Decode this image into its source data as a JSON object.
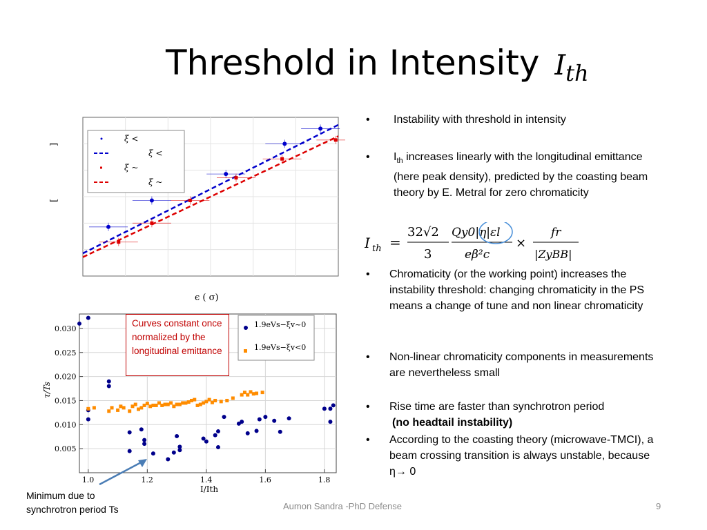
{
  "slide": {
    "title_text": "Threshold in Intensity",
    "title_math_main": "I",
    "title_math_sub": "th",
    "footer": "Aumon Sandra -PhD Defense",
    "page_number": "9"
  },
  "bullets": [
    {
      "text": "Instability with threshold in intensity"
    },
    {
      "text_main": "I",
      "text_sub": "th",
      "text_rest": " increases linearly with the longitudinal emittance (here peak density), predicted by the coasting beam theory by E. Metral for zero chromaticity"
    },
    {
      "text": "Chromaticity (or the working point) increases the instability threshold: changing chromaticity in the PS means a change of tune and non linear chromaticity"
    },
    {
      "text": "Non-linear chromaticity components in measurements are nevertheless small"
    },
    {
      "text": "Rise time are faster than synchrotron period",
      "text_bold": "(no headtail instability)"
    },
    {
      "text": "According to the coasting theory (microwave-TMCI), a beam crossing transition is always unstable, because η",
      "text_arrow": "→ 0"
    }
  ],
  "formula": {
    "lhs": "I",
    "lhs_sub": "th",
    "num1": "32√2",
    "den1": "3",
    "num2": "Qy0|η|εl",
    "den2": "eβ²c",
    "times": "×",
    "num3": "fr",
    "den3": "|ZyBB|"
  },
  "annotations": {
    "callout": "Curves constant once normalized by the longitudinal emittance",
    "minimum_note": "Minimum due to synchrotron period Ts"
  },
  "chart_data": [
    {
      "type": "scatter",
      "title": "",
      "xlabel": "ϵ (   σ)",
      "ylabel_top": "]",
      "ylabel_bottom": "[",
      "legend": [
        "ξ <",
        "ξ <",
        "ξ ~",
        "ξ ~"
      ],
      "legend_placement": "top-left",
      "grid": true,
      "series": [
        {
          "color": "#0000cc",
          "points": [
            [
              0.1,
              0.73
            ],
            [
              0.27,
              0.8
            ],
            [
              0.56,
              0.87
            ],
            [
              0.79,
              0.95
            ],
            [
              0.93,
              0.99
            ]
          ],
          "fit_line": [
            [
              0.0,
              0.66
            ],
            [
              1.0,
              1.0
            ]
          ]
        },
        {
          "color": "#dd0000",
          "points": [
            [
              0.14,
              0.69
            ],
            [
              0.27,
              0.74
            ],
            [
              0.42,
              0.8
            ],
            [
              0.6,
              0.86
            ],
            [
              0.78,
              0.91
            ],
            [
              0.99,
              0.96
            ]
          ],
          "fit_line": [
            [
              0.0,
              0.65
            ],
            [
              1.0,
              0.97
            ]
          ]
        }
      ]
    },
    {
      "type": "scatter",
      "title": "",
      "xlabel": "I/Ith",
      "ylabel": "τ/Ts",
      "xlim": [
        0.97,
        1.84
      ],
      "ylim": [
        0.0,
        0.033
      ],
      "xticks": [
        "1.0",
        "1.2",
        "1.4",
        "1.6",
        "1.8"
      ],
      "yticks": [
        "0.005",
        "0.010",
        "0.015",
        "0.020",
        "0.025",
        "0.030"
      ],
      "legend": [
        "1.9eVs−ξv~0",
        "1.9eVs−ξv<0"
      ],
      "legend_placement": "top-right",
      "grid": true,
      "series": [
        {
          "name": "1.9eVs−ξv~0",
          "color": "#00008b",
          "marker": "circle",
          "points": [
            [
              0.97,
              0.031
            ],
            [
              1.0,
              0.0322
            ],
            [
              1.0,
              0.0111
            ],
            [
              1.0,
              0.013
            ],
            [
              1.07,
              0.018
            ],
            [
              1.07,
              0.019
            ],
            [
              1.14,
              0.0045
            ],
            [
              1.14,
              0.0084
            ],
            [
              1.18,
              0.009
            ],
            [
              1.19,
              0.006
            ],
            [
              1.19,
              0.0068
            ],
            [
              1.22,
              0.004
            ],
            [
              1.27,
              0.0028
            ],
            [
              1.29,
              0.0042
            ],
            [
              1.3,
              0.0076
            ],
            [
              1.31,
              0.0047
            ],
            [
              1.31,
              0.0054
            ],
            [
              1.39,
              0.0071
            ],
            [
              1.4,
              0.0065
            ],
            [
              1.43,
              0.0078
            ],
            [
              1.44,
              0.0086
            ],
            [
              1.44,
              0.0053
            ],
            [
              1.46,
              0.0116
            ],
            [
              1.51,
              0.0102
            ],
            [
              1.52,
              0.0106
            ],
            [
              1.54,
              0.0082
            ],
            [
              1.57,
              0.0087
            ],
            [
              1.58,
              0.0111
            ],
            [
              1.6,
              0.0116
            ],
            [
              1.63,
              0.0108
            ],
            [
              1.65,
              0.0085
            ],
            [
              1.68,
              0.0113
            ],
            [
              1.8,
              0.0133
            ],
            [
              1.82,
              0.0106
            ],
            [
              1.82,
              0.0133
            ],
            [
              1.83,
              0.014
            ]
          ]
        },
        {
          "name": "1.9eVs−ξv<0",
          "color": "#ff8c00",
          "marker": "square",
          "points": [
            [
              1.0,
              0.0133
            ],
            [
              1.02,
              0.0135
            ],
            [
              1.07,
              0.0128
            ],
            [
              1.08,
              0.0135
            ],
            [
              1.1,
              0.013
            ],
            [
              1.11,
              0.0138
            ],
            [
              1.12,
              0.0135
            ],
            [
              1.14,
              0.0128
            ],
            [
              1.15,
              0.0138
            ],
            [
              1.16,
              0.0142
            ],
            [
              1.17,
              0.0132
            ],
            [
              1.18,
              0.0135
            ],
            [
              1.19,
              0.014
            ],
            [
              1.2,
              0.0144
            ],
            [
              1.21,
              0.0138
            ],
            [
              1.22,
              0.014
            ],
            [
              1.23,
              0.014
            ],
            [
              1.24,
              0.0145
            ],
            [
              1.25,
              0.014
            ],
            [
              1.26,
              0.0142
            ],
            [
              1.27,
              0.0142
            ],
            [
              1.28,
              0.0145
            ],
            [
              1.29,
              0.0138
            ],
            [
              1.3,
              0.0142
            ],
            [
              1.31,
              0.0142
            ],
            [
              1.32,
              0.0145
            ],
            [
              1.33,
              0.0145
            ],
            [
              1.34,
              0.0147
            ],
            [
              1.35,
              0.015
            ],
            [
              1.36,
              0.0152
            ],
            [
              1.37,
              0.014
            ],
            [
              1.38,
              0.0142
            ],
            [
              1.39,
              0.0145
            ],
            [
              1.4,
              0.0148
            ],
            [
              1.41,
              0.0152
            ],
            [
              1.42,
              0.0146
            ],
            [
              1.43,
              0.015
            ],
            [
              1.45,
              0.0148
            ],
            [
              1.47,
              0.015
            ],
            [
              1.49,
              0.0155
            ],
            [
              1.52,
              0.0162
            ],
            [
              1.53,
              0.0167
            ],
            [
              1.54,
              0.0162
            ],
            [
              1.55,
              0.0168
            ],
            [
              1.56,
              0.0164
            ],
            [
              1.57,
              0.0165
            ],
            [
              1.59,
              0.0167
            ]
          ]
        }
      ]
    }
  ]
}
